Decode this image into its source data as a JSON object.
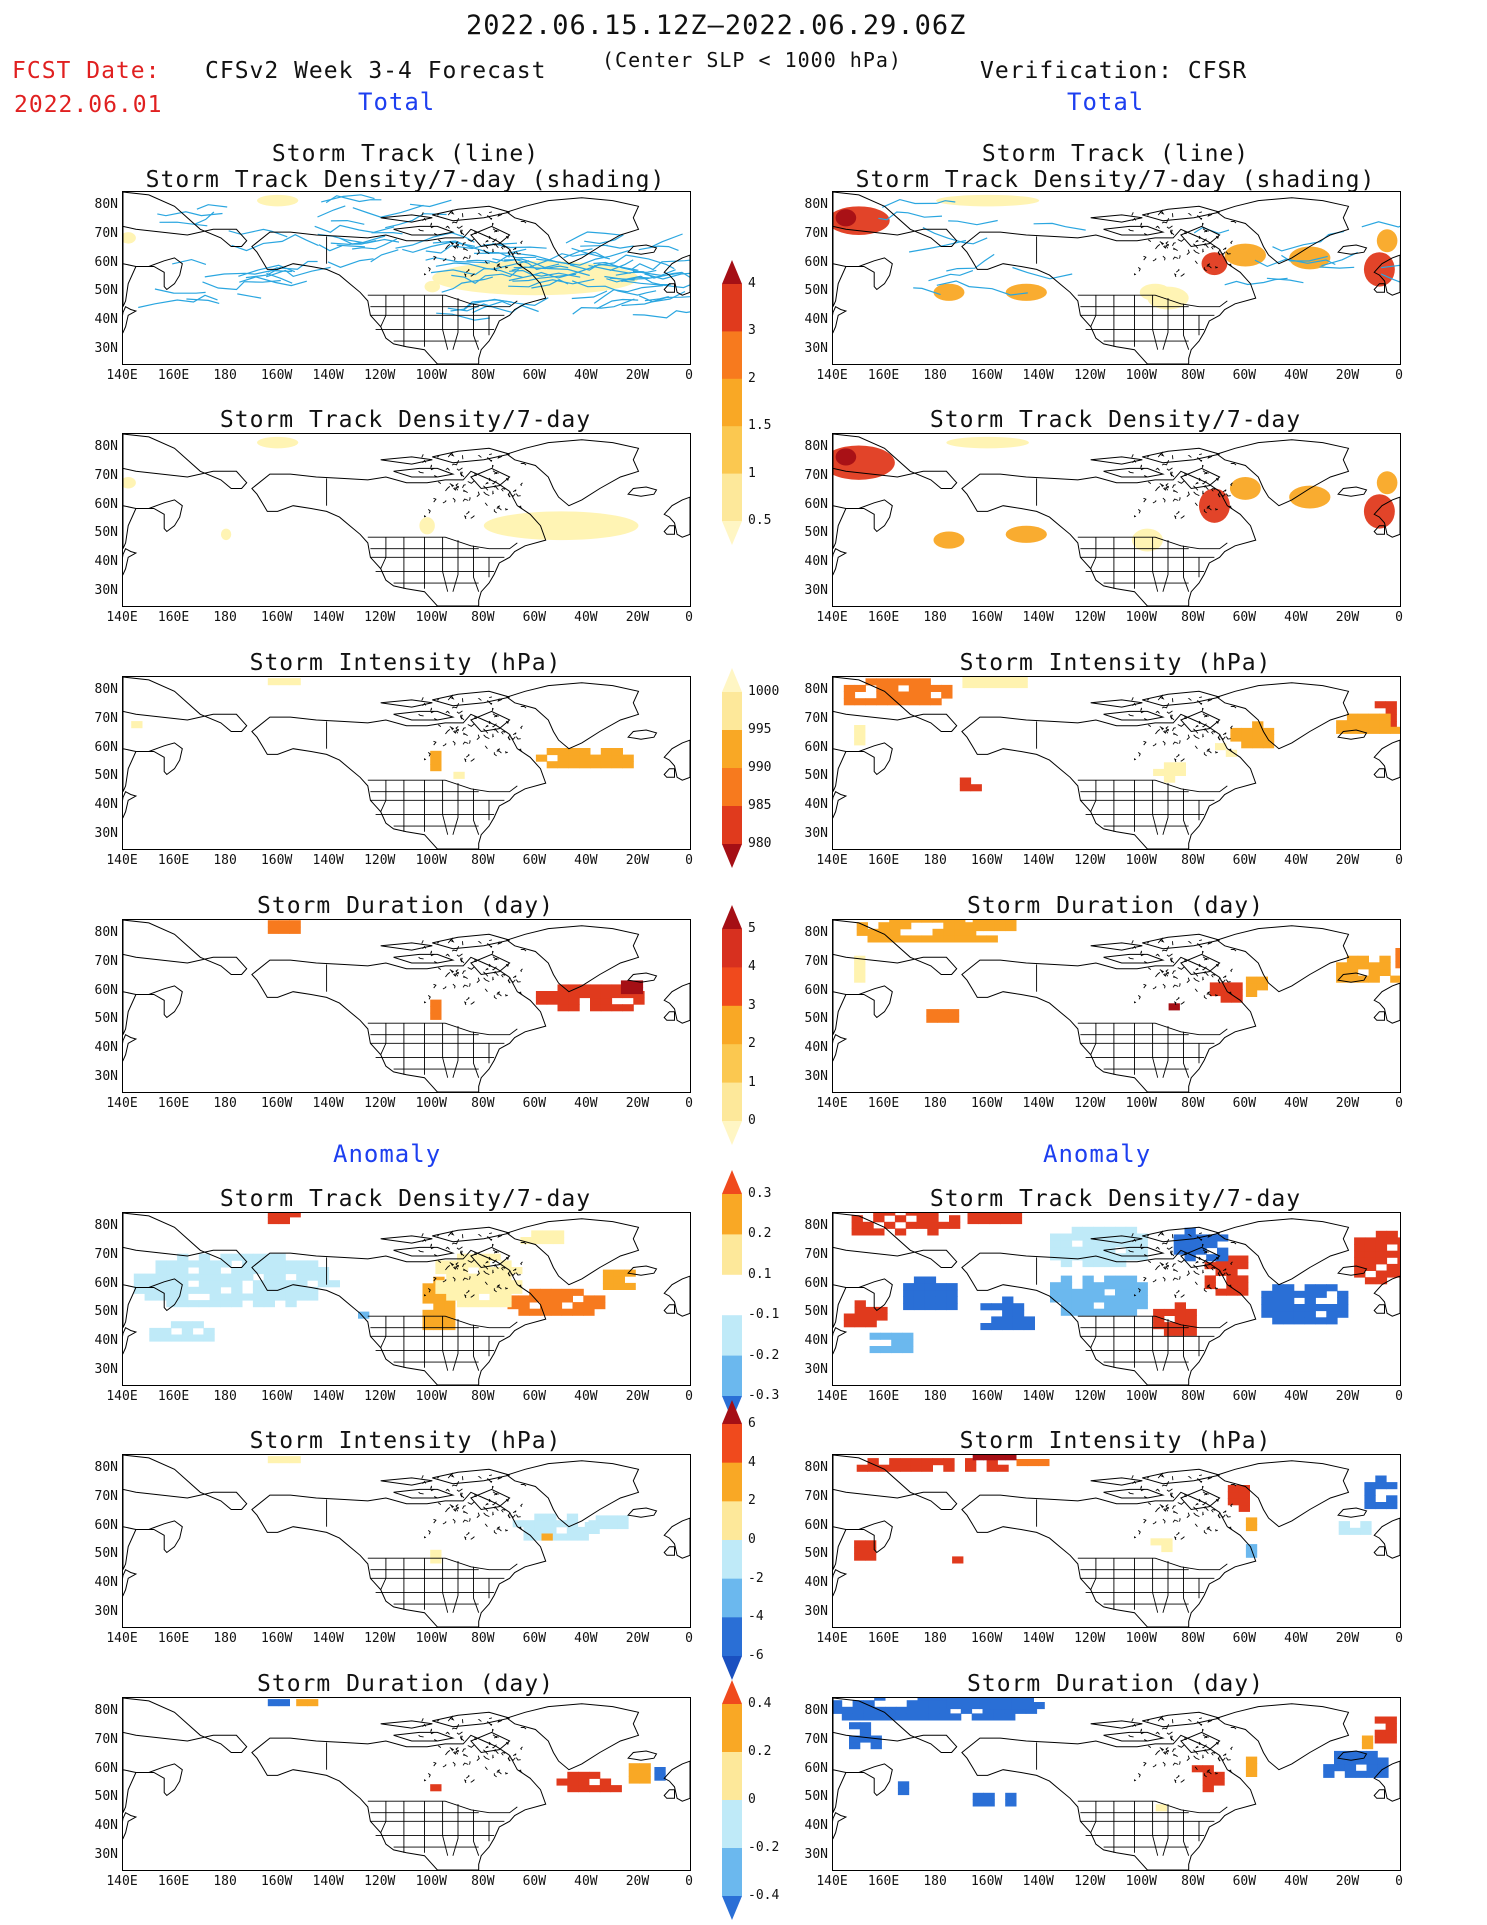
{
  "header": {
    "date_range": "2022.06.15.12Z—2022.06.29.06Z",
    "subtitle": "(Center SLP < 1000 hPa)",
    "fcst_label": "FCST Date:",
    "fcst_date": "2022.06.01",
    "left_title": "CFSv2 Week 3-4 Forecast",
    "right_title": "Verification: CFSR",
    "section_total": "Total",
    "section_anomaly": "Anomaly"
  },
  "axes": {
    "lat_labels": [
      "80N",
      "70N",
      "60N",
      "50N",
      "40N",
      "30N"
    ],
    "lon_labels": [
      "140E",
      "160E",
      "180",
      "160W",
      "140W",
      "120W",
      "100W",
      "80W",
      "60W",
      "40W",
      "20W",
      "0"
    ]
  },
  "panels": {
    "left": [
      {
        "title1": "Storm Track (line)",
        "title2": "Storm Track Density/7-day (shading)"
      },
      {
        "title1": "Storm Track Density/7-day",
        "title2": ""
      },
      {
        "title1": "Storm Intensity (hPa)",
        "title2": ""
      },
      {
        "title1": "Storm Duration (day)",
        "title2": ""
      },
      {
        "title1": "Storm Track Density/7-day",
        "title2": ""
      },
      {
        "title1": "Storm Intensity (hPa)",
        "title2": ""
      },
      {
        "title1": "Storm Duration (day)",
        "title2": ""
      }
    ],
    "right": [
      {
        "title1": "Storm Track (line)",
        "title2": "Storm Track Density/7-day (shading)"
      },
      {
        "title1": "Storm Track Density/7-day",
        "title2": ""
      },
      {
        "title1": "Storm Intensity (hPa)",
        "title2": ""
      },
      {
        "title1": "Storm Duration (day)",
        "title2": ""
      },
      {
        "title1": "Storm Track Density/7-day",
        "title2": ""
      },
      {
        "title1": "Storm Intensity (hPa)",
        "title2": ""
      },
      {
        "title1": "Storm Duration (day)",
        "title2": ""
      }
    ]
  },
  "colorbars": [
    {
      "name": "density",
      "labels": [
        "4",
        "3",
        "2",
        "1.5",
        "1",
        "0.5"
      ],
      "colors": [
        "#a50f15",
        "#e03a1d",
        "#f77a1e",
        "#f9a825",
        "#fbc850",
        "#fde89a",
        "#fff6c4"
      ]
    },
    {
      "name": "intensity",
      "labels": [
        "1000",
        "995",
        "990",
        "985",
        "980"
      ],
      "colors": [
        "#fff6c4",
        "#fde89a",
        "#f9a825",
        "#f77a1e",
        "#e03a1d",
        "#a50f15"
      ]
    },
    {
      "name": "duration",
      "labels": [
        "5",
        "4",
        "3",
        "2",
        "1",
        "0"
      ],
      "colors": [
        "#a50f15",
        "#d7301f",
        "#f04a1d",
        "#f9a825",
        "#fbc850",
        "#fde89a",
        "#fff6c4"
      ]
    },
    {
      "name": "density_anom",
      "labels": [
        "0.3",
        "0.2",
        "0.1",
        "-0.1",
        "-0.2",
        "-0.3"
      ],
      "colors": [
        "#f04a1d",
        "#f9a825",
        "#fde89a",
        "#ffffff",
        "#bfeaf8",
        "#6bb8ee",
        "#2a6fd6"
      ]
    },
    {
      "name": "intensity_anom",
      "labels": [
        "6",
        "4",
        "2",
        "0",
        "-2",
        "-4",
        "-6"
      ],
      "colors": [
        "#a50f15",
        "#f04a1d",
        "#f9a825",
        "#fde89a",
        "#bfeaf8",
        "#6bb8ee",
        "#2a6fd6",
        "#1a50c0"
      ]
    },
    {
      "name": "duration_anom",
      "labels": [
        "0.4",
        "0.2",
        "0",
        "-0.2",
        "-0.4"
      ],
      "colors": [
        "#f04a1d",
        "#f9a825",
        "#fde89a",
        "#bfeaf8",
        "#6bb8ee",
        "#2a6fd6"
      ]
    }
  ],
  "palette": {
    "land": "#000000",
    "track": "#2aa6e0",
    "yellow1": "#fff3b0",
    "yellow2": "#fde289",
    "orange": "#f9a825",
    "orange2": "#f77a1e",
    "red": "#e03a1d",
    "darkred": "#a50f15",
    "lblue": "#bfeaf8",
    "mblue": "#6bb8ee",
    "dblue": "#2a6fd6"
  }
}
